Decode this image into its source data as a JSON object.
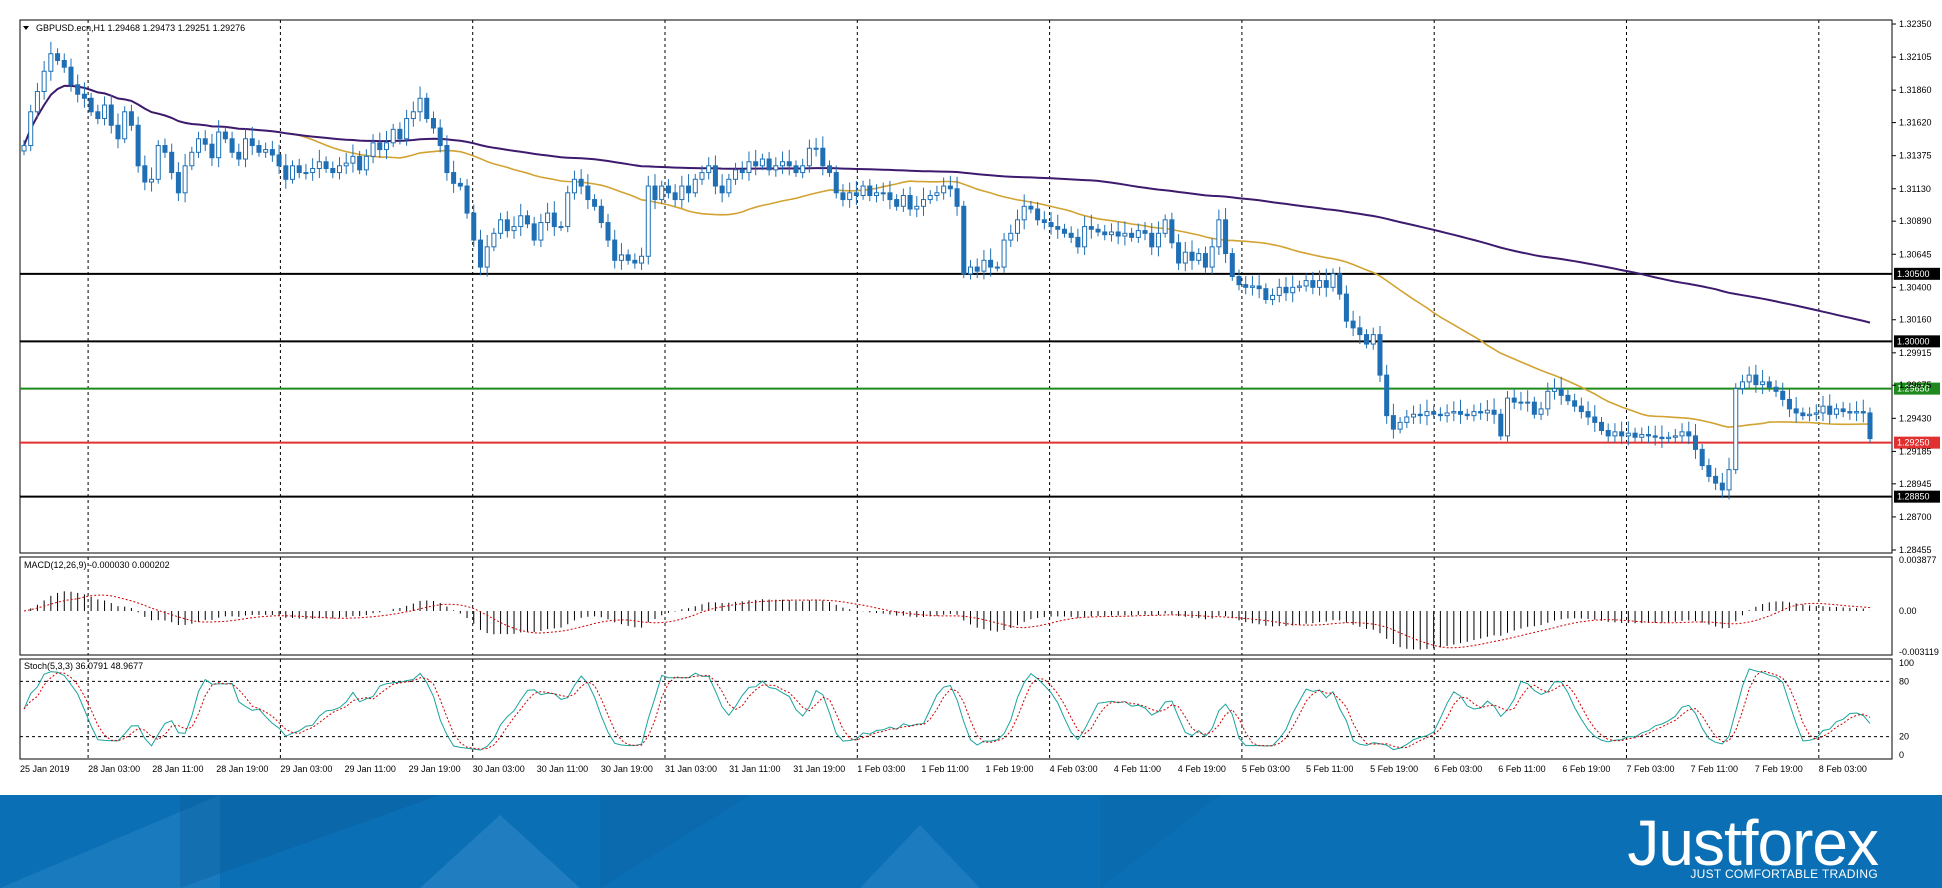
{
  "colors": {
    "bull": "#1f6fb5",
    "bear": "#1f6fb5",
    "ma_fast": "#d2a332",
    "ma_slow": "#3d1a6e",
    "level_black": "#000000",
    "level_green": "#1e8a1e",
    "level_red": "#e03030",
    "macd_signal": "#d00000",
    "stoch_main": "#1aa39b",
    "stoch_signal": "#d00000",
    "footer_bg": "#0a6fb4"
  },
  "header": {
    "title": "GBPUSD.ecn,H1  1.29468 1.29473 1.29251 1.29276"
  },
  "macd_label": "MACD(12,26,9) -0.000030 0.000202",
  "stoch_label": "Stoch(5,3,3) 36.0791 48.9677",
  "brand": {
    "name": "Justforex",
    "tagline": "JUST COMFORTABLE TRADING"
  },
  "chart_data": [
    {
      "type": "candlestick",
      "symbol": "GBPUSD.ecn,H1",
      "ohlc_last": {
        "open": 1.29468,
        "high": 1.29473,
        "low": 1.29251,
        "close": 1.29276
      },
      "ylim": [
        1.28455,
        1.3235
      ],
      "y_ticks": [
        "1.32350",
        "1.32105",
        "1.31860",
        "1.31620",
        "1.31375",
        "1.31130",
        "1.30890",
        "1.30645",
        "1.30400",
        "1.30160",
        "1.29915",
        "1.29675",
        "1.29430",
        "1.29185",
        "1.28945",
        "1.28700",
        "1.28455"
      ],
      "x_ticks": [
        "25 Jan 2019",
        "28 Jan 03:00",
        "28 Jan 11:00",
        "28 Jan 19:00",
        "29 Jan 03:00",
        "29 Jan 11:00",
        "29 Jan 19:00",
        "30 Jan 03:00",
        "30 Jan 11:00",
        "30 Jan 19:00",
        "31 Jan 03:00",
        "31 Jan 11:00",
        "31 Jan 19:00",
        "1 Feb 03:00",
        "1 Feb 11:00",
        "1 Feb 19:00",
        "4 Feb 03:00",
        "4 Feb 11:00",
        "4 Feb 19:00",
        "5 Feb 03:00",
        "5 Feb 11:00",
        "5 Feb 19:00",
        "6 Feb 03:00",
        "6 Feb 11:00",
        "6 Feb 19:00",
        "7 Feb 03:00",
        "7 Feb 11:00",
        "7 Feb 19:00",
        "8 Feb 03:00"
      ],
      "horizontal_levels": [
        {
          "value": 1.305,
          "label": "1.30500",
          "color": "black"
        },
        {
          "value": 1.3,
          "label": "1.30000",
          "color": "black"
        },
        {
          "value": 1.2965,
          "label": "1.29650",
          "color": "green"
        },
        {
          "value": 1.2925,
          "label": "1.29250",
          "color": "red"
        },
        {
          "value": 1.2885,
          "label": "1.28850",
          "color": "black"
        }
      ],
      "close_series": [
        1.3145,
        1.317,
        1.3185,
        1.32,
        1.3213,
        1.3208,
        1.3203,
        1.319,
        1.3183,
        1.318,
        1.317,
        1.3165,
        1.3175,
        1.316,
        1.315,
        1.317,
        1.316,
        1.313,
        1.3118,
        1.312,
        1.3145,
        1.314,
        1.3125,
        1.311,
        1.313,
        1.314,
        1.315,
        1.3146,
        1.3136,
        1.3155,
        1.315,
        1.314,
        1.3135,
        1.315,
        1.3145,
        1.314,
        1.3142,
        1.3138,
        1.313,
        1.312,
        1.313,
        1.3125,
        1.3125,
        1.3128,
        1.3133,
        1.3128,
        1.3125,
        1.313,
        1.3132,
        1.3137,
        1.3127,
        1.3137,
        1.3147,
        1.3142,
        1.3147,
        1.3157,
        1.315,
        1.3165,
        1.317,
        1.318,
        1.3165,
        1.3158,
        1.3145,
        1.3125,
        1.3117,
        1.3115,
        1.3095,
        1.3075,
        1.3055,
        1.307,
        1.308,
        1.309,
        1.3082,
        1.3085,
        1.3093,
        1.3087,
        1.3075,
        1.3088,
        1.3095,
        1.3085,
        1.3085,
        1.311,
        1.312,
        1.3115,
        1.3105,
        1.31,
        1.3088,
        1.3075,
        1.306,
        1.3064,
        1.306,
        1.3058,
        1.3063,
        1.3115,
        1.3105,
        1.3115,
        1.311,
        1.3105,
        1.3115,
        1.311,
        1.312,
        1.3125,
        1.313,
        1.3115,
        1.311,
        1.312,
        1.3127,
        1.3125,
        1.3133,
        1.313,
        1.3135,
        1.3127,
        1.313,
        1.3133,
        1.313,
        1.3125,
        1.313,
        1.3143,
        1.3143,
        1.313,
        1.3125,
        1.311,
        1.3105,
        1.311,
        1.3108,
        1.3115,
        1.3108,
        1.311,
        1.311,
        1.3105,
        1.31,
        1.3108,
        1.3098,
        1.31,
        1.3105,
        1.3108,
        1.311,
        1.3115,
        1.3113,
        1.31,
        1.305,
        1.3055,
        1.3052,
        1.306,
        1.3055,
        1.3055,
        1.3075,
        1.308,
        1.309,
        1.31,
        1.3098,
        1.309,
        1.3088,
        1.3085,
        1.3083,
        1.308,
        1.3077,
        1.307,
        1.3085,
        1.3083,
        1.3081,
        1.3079,
        1.3081,
        1.3078,
        1.308,
        1.3077,
        1.3082,
        1.308,
        1.307,
        1.308,
        1.309,
        1.3073,
        1.3058,
        1.3066,
        1.306,
        1.3065,
        1.3055,
        1.307,
        1.309,
        1.3065,
        1.3048,
        1.3042,
        1.304,
        1.3041,
        1.3039,
        1.3031,
        1.3034,
        1.304,
        1.3036,
        1.304,
        1.3041,
        1.3045,
        1.304,
        1.3045,
        1.304,
        1.305,
        1.3035,
        1.3015,
        1.301,
        1.3005,
        1.2998,
        1.3005,
        1.2975,
        1.2945,
        1.2935,
        1.294,
        1.2944,
        1.2946,
        1.2945,
        1.2948,
        1.2946,
        1.2945,
        1.2947,
        1.2948,
        1.2946,
        1.2945,
        1.2948,
        1.2947,
        1.2949,
        1.2946,
        1.293,
        1.2958,
        1.2955,
        1.2955,
        1.2955,
        1.2946,
        1.295,
        1.2963,
        1.2965,
        1.296,
        1.2956,
        1.2952,
        1.2948,
        1.2944,
        1.294,
        1.2934,
        1.293,
        1.2933,
        1.293,
        1.2932,
        1.2929,
        1.2931,
        1.293,
        1.2929,
        1.2928,
        1.2929,
        1.293,
        1.2933,
        1.293,
        1.292,
        1.2908,
        1.29,
        1.2895,
        1.289,
        1.2905,
        1.2965,
        1.297,
        1.2975,
        1.2968,
        1.297,
        1.2966,
        1.2963,
        1.2957,
        1.295,
        1.2947,
        1.2945,
        1.2946,
        1.2947,
        1.2952,
        1.2946,
        1.295,
        1.2948,
        1.2947,
        1.2948,
        1.2947,
        1.2928
      ]
    },
    {
      "type": "macd",
      "label": "MACD(12,26,9) -0.000030 0.000202",
      "y_ticks": [
        "0.003877",
        "0.00",
        "-0.003119"
      ],
      "ylim": [
        -0.003119,
        0.003877
      ]
    },
    {
      "type": "stochastic",
      "label": "Stoch(5,3,3) 36.0791 48.9677",
      "y_ticks": [
        "100",
        "80",
        "20",
        "0"
      ],
      "ylim": [
        0,
        100
      ],
      "levels": [
        80,
        20
      ]
    }
  ]
}
